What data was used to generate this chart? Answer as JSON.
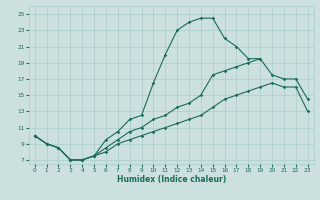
{
  "xlabel": "Humidex (Indice chaleur)",
  "ylabel": "",
  "bg_color": "#cde0e0",
  "grid_color": "#aacccc",
  "line_color": "#1a6b5a",
  "xlim": [
    -0.5,
    23.5
  ],
  "ylim": [
    6.5,
    26
  ],
  "xticks": [
    0,
    1,
    2,
    3,
    4,
    5,
    6,
    7,
    8,
    9,
    10,
    11,
    12,
    13,
    14,
    15,
    16,
    17,
    18,
    19,
    20,
    21,
    22,
    23
  ],
  "yticks": [
    7,
    9,
    11,
    13,
    15,
    17,
    19,
    21,
    23,
    25
  ],
  "curve1_x": [
    0,
    1,
    2,
    3,
    4,
    5,
    6,
    7,
    8,
    9,
    10,
    11,
    12,
    13,
    14,
    15,
    16,
    17,
    18,
    19
  ],
  "curve1_y": [
    10,
    9,
    8.5,
    7,
    7,
    7.5,
    9.5,
    10.5,
    12,
    12.5,
    16.5,
    20,
    23,
    24,
    24.5,
    24.5,
    22,
    21,
    19.5,
    19.5
  ],
  "curve2_x": [
    0,
    1,
    2,
    3,
    4,
    5,
    6,
    7,
    8,
    9,
    10,
    11,
    12,
    13,
    14,
    15,
    16,
    17,
    18,
    19,
    20,
    21,
    22,
    23
  ],
  "curve2_y": [
    10,
    9,
    8.5,
    7,
    7,
    7.5,
    8.5,
    9.5,
    10.5,
    11,
    12,
    12.5,
    13.5,
    14,
    15,
    17.5,
    18,
    18.5,
    19,
    19.5,
    17.5,
    17,
    17,
    14.5
  ],
  "curve3_x": [
    0,
    1,
    2,
    3,
    4,
    5,
    6,
    7,
    8,
    9,
    10,
    11,
    12,
    13,
    14,
    15,
    16,
    17,
    18,
    19,
    20,
    21,
    22,
    23
  ],
  "curve3_y": [
    10,
    9,
    8.5,
    7,
    7,
    7.5,
    8,
    9,
    9.5,
    10,
    10.5,
    11,
    11.5,
    12,
    12.5,
    13.5,
    14.5,
    15,
    15.5,
    16,
    16.5,
    16,
    16,
    13
  ]
}
